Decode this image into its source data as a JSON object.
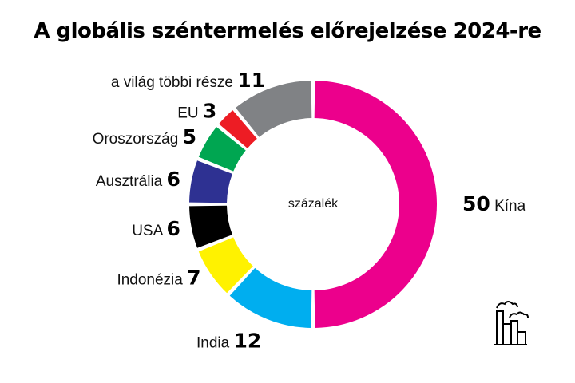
{
  "chart_data": {
    "type": "pie",
    "title": "A globális széntermelés előrejelzése 2024-re",
    "center_label": "százalék",
    "hole": true,
    "slices": [
      {
        "label": "Kína",
        "value": 50,
        "color": "#ec008c",
        "value_first": true
      },
      {
        "label": "India",
        "value": 12,
        "color": "#00aeef"
      },
      {
        "label": "Indonézia",
        "value": 7,
        "color": "#fff200"
      },
      {
        "label": "USA",
        "value": 6,
        "color": "#000000"
      },
      {
        "label": "Ausztrália",
        "value": 6,
        "color": "#2e3192"
      },
      {
        "label": "Oroszország",
        "value": 5,
        "color": "#00a651"
      },
      {
        "label": "EU",
        "value": 3,
        "color": "#ed1c24"
      },
      {
        "label": "a világ többi része",
        "value": 11,
        "color": "#808285"
      }
    ]
  },
  "logo": {
    "icon": "factory-icon"
  }
}
